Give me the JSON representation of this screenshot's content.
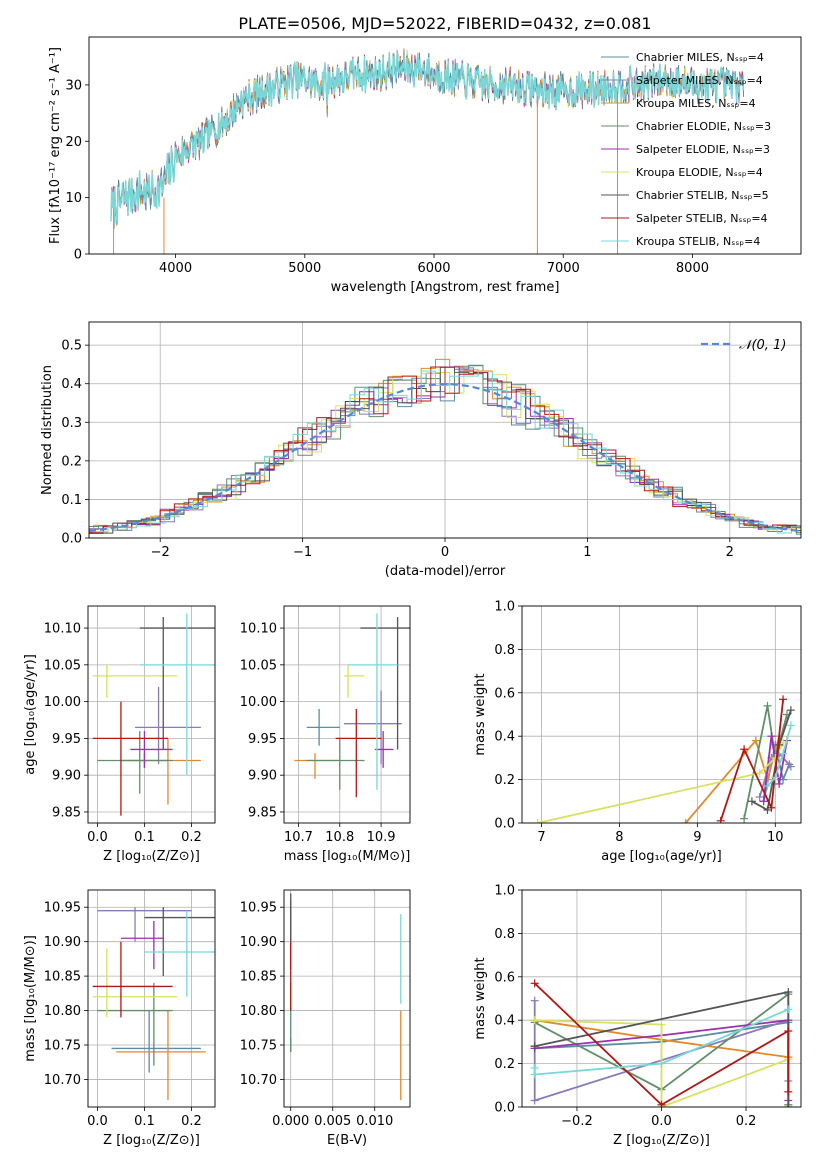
{
  "title": "PLATE=0506, MJD=52022, FIBERID=0432, z=0.081",
  "colors": {
    "models": [
      "#5a8ea0",
      "#8b7ab8",
      "#e08a2e",
      "#5f8f6a",
      "#9b30b0",
      "#d8e060",
      "#555555",
      "#b01818",
      "#79d7d7"
    ],
    "gauss": "#5588dd",
    "grid": "#b0b0b0"
  },
  "chart_data": [
    {
      "type": "line",
      "name": "spectrum",
      "xlabel": "wavelength [Angstrom, rest frame]",
      "ylabel": "Flux [fλ10⁻¹⁷ erg cm⁻² s⁻¹ A⁻¹]",
      "xlim": [
        3330,
        8840
      ],
      "ylim": [
        0,
        38.5
      ],
      "xticks": [
        4000,
        5000,
        6000,
        7000,
        8000
      ],
      "yticks": [
        0,
        10,
        20,
        30
      ],
      "grid": false,
      "legend_placement": "right",
      "legend": [
        "Chabrier MILES, Nₛₛₚ=4",
        "Salpeter MILES, Nₛₛₚ=4",
        "Kroupa MILES, Nₛₛₚ=4",
        "Chabrier ELODIE, Nₛₛₚ=3",
        "Salpeter ELODIE, Nₛₛₚ=3",
        "Kroupa ELODIE, Nₛₛₚ=4",
        "Chabrier STELIB, Nₛₛₚ=5",
        "Salpeter STELIB, Nₛₛₚ=4",
        "Kroupa STELIB, Nₛₛₚ=4"
      ],
      "continuum": {
        "x": [
          3500,
          3600,
          3700,
          3800,
          3900,
          4000,
          4100,
          4200,
          4300,
          4400,
          4500,
          4600,
          4700,
          4800,
          4900,
          5000,
          5100,
          5200,
          5300,
          5400,
          5500,
          5600,
          5700,
          5800,
          5900,
          6000,
          6200,
          6400,
          6600,
          6800,
          7000,
          7200,
          7400,
          7600,
          7800,
          8000,
          8200,
          8400
        ],
        "y": [
          8,
          10,
          11,
          11,
          12,
          17,
          19,
          20,
          22,
          24,
          27,
          28,
          29,
          30,
          31,
          31,
          30,
          31,
          31,
          32,
          32,
          32,
          33,
          33,
          33,
          32,
          31,
          30,
          30,
          29,
          29,
          29,
          30,
          30,
          31,
          30,
          30,
          30
        ]
      },
      "drops": [
        {
          "x": 3520,
          "y_from": 8,
          "y_to": 0
        },
        {
          "x": 3910,
          "y_from": 10,
          "y_to": 0
        },
        {
          "x": 6800,
          "y_from": 28,
          "y_to": 0
        },
        {
          "x": 7420,
          "y_from": 29,
          "y_to": 0
        }
      ]
    },
    {
      "type": "step",
      "name": "residuals",
      "xlabel": "(data-model)/error",
      "ylabel": "Normed distribution",
      "xlim": [
        -2.5,
        2.5
      ],
      "ylim": [
        0,
        0.56
      ],
      "xticks": [
        -2,
        -1,
        0,
        1,
        2
      ],
      "yticks": [
        0.0,
        0.1,
        0.2,
        0.3,
        0.4,
        0.5
      ],
      "grid": true,
      "legend_placement": "top-right",
      "legend": [
        "𝒩(0, 1)"
      ],
      "bin_width": 0.1
    },
    {
      "type": "errorbar",
      "name": "age-vs-Z",
      "xlabel": "Z [log₁₀(Z/Z⊙)]",
      "ylabel": "age  [log₁₀(age/yr)]",
      "xlim": [
        -0.02,
        0.25
      ],
      "ylim": [
        9.835,
        10.13
      ],
      "xticks": [
        0.0,
        0.1,
        0.2
      ],
      "yticks": [
        9.85,
        9.9,
        9.95,
        10.0,
        10.05,
        10.1
      ],
      "grid": true,
      "points": [
        {
          "c": 0,
          "x": 0.1,
          "xe": [
            0.05,
            0.15
          ],
          "y": 9.92,
          "ye": [
            9.91,
            9.93
          ]
        },
        {
          "c": 1,
          "x": 0.13,
          "xe": [
            0.08,
            0.22
          ],
          "y": 9.965,
          "ye": [
            9.915,
            10.02
          ]
        },
        {
          "c": 2,
          "x": 0.15,
          "xe": [
            0.05,
            0.22
          ],
          "y": 9.92,
          "ye": [
            9.86,
            9.95
          ]
        },
        {
          "c": 3,
          "x": 0.09,
          "xe": [
            0.0,
            0.16
          ],
          "y": 9.92,
          "ye": [
            9.875,
            9.96
          ]
        },
        {
          "c": 4,
          "x": 0.1,
          "xe": [
            0.07,
            0.16
          ],
          "y": 9.935,
          "ye": [
            9.91,
            9.96
          ]
        },
        {
          "c": 5,
          "x": 0.02,
          "xe": [
            -0.01,
            0.17
          ],
          "y": 10.035,
          "ye": [
            10.005,
            10.05
          ]
        },
        {
          "c": 6,
          "x": 0.14,
          "xe": [
            0.09,
            0.25
          ],
          "y": 10.1,
          "ye": [
            9.935,
            10.115
          ]
        },
        {
          "c": 7,
          "x": 0.05,
          "xe": [
            -0.01,
            0.15
          ],
          "y": 9.95,
          "ye": [
            9.845,
            10.0
          ]
        },
        {
          "c": 8,
          "x": 0.19,
          "xe": [
            0.09,
            0.25
          ],
          "y": 10.05,
          "ye": [
            9.9,
            10.12
          ]
        }
      ]
    },
    {
      "type": "errorbar",
      "name": "age-vs-mass",
      "xlabel": "mass [log₁₀(M/M⊙)]",
      "ylabel": "",
      "xlim": [
        10.665,
        10.97
      ],
      "ylim": [
        9.835,
        10.13
      ],
      "xticks": [
        10.7,
        10.8,
        10.9
      ],
      "yticks": [
        9.85,
        9.9,
        9.95,
        10.0,
        10.05,
        10.1
      ],
      "grid": true,
      "points": [
        {
          "c": 0,
          "x": 10.75,
          "xe": [
            10.72,
            10.8
          ],
          "y": 9.965,
          "ye": [
            9.94,
            9.99
          ]
        },
        {
          "c": 1,
          "x": 10.9,
          "xe": [
            10.81,
            10.95
          ],
          "y": 9.97,
          "ye": [
            9.915,
            10.015
          ]
        },
        {
          "c": 2,
          "x": 10.74,
          "xe": [
            10.69,
            10.8
          ],
          "y": 9.92,
          "ye": [
            9.895,
            9.93
          ]
        },
        {
          "c": 3,
          "x": 10.8,
          "xe": [
            10.72,
            10.86
          ],
          "y": 9.92,
          "ye": [
            9.88,
            9.95
          ]
        },
        {
          "c": 4,
          "x": 10.905,
          "xe": [
            10.885,
            10.93
          ],
          "y": 9.935,
          "ye": [
            9.91,
            9.96
          ]
        },
        {
          "c": 5,
          "x": 10.82,
          "xe": [
            10.81,
            10.86
          ],
          "y": 10.035,
          "ye": [
            10.005,
            10.05
          ]
        },
        {
          "c": 6,
          "x": 10.94,
          "xe": [
            10.85,
            10.97
          ],
          "y": 10.1,
          "ye": [
            9.935,
            10.115
          ]
        },
        {
          "c": 7,
          "x": 10.84,
          "xe": [
            10.79,
            10.9
          ],
          "y": 9.95,
          "ye": [
            9.87,
            9.99
          ]
        },
        {
          "c": 8,
          "x": 10.89,
          "xe": [
            10.82,
            10.94
          ],
          "y": 10.05,
          "ye": [
            9.88,
            10.12
          ]
        }
      ]
    },
    {
      "type": "line",
      "name": "mass-weight-vs-age",
      "xlabel": "age  [log₁₀(age/yr)]",
      "ylabel": "mass weight",
      "xlim": [
        6.75,
        10.33
      ],
      "ylim": [
        0,
        1.0
      ],
      "xticks": [
        7,
        8,
        9,
        10
      ],
      "yticks": [
        0.0,
        0.2,
        0.4,
        0.6,
        0.8,
        1.0
      ],
      "grid": true,
      "series": [
        {
          "c": 0,
          "x": [
            9.85,
            10.0,
            10.1,
            10.18
          ],
          "y": [
            0.1,
            0.36,
            0.2,
            0.27
          ]
        },
        {
          "c": 1,
          "x": [
            9.8,
            9.95,
            10.05,
            10.2
          ],
          "y": [
            0.12,
            0.3,
            0.32,
            0.26
          ]
        },
        {
          "c": 2,
          "x": [
            8.85,
            9.75,
            9.9,
            10.05
          ],
          "y": [
            0.0,
            0.38,
            0.2,
            0.4
          ]
        },
        {
          "c": 3,
          "x": [
            9.6,
            9.9,
            10.0,
            10.15
          ],
          "y": [
            0.02,
            0.54,
            0.3,
            0.5
          ]
        },
        {
          "c": 4,
          "x": [
            9.85,
            9.95,
            10.05,
            10.15
          ],
          "y": [
            0.1,
            0.4,
            0.18,
            0.38
          ]
        },
        {
          "c": 5,
          "x": [
            6.95,
            9.8,
            10.0,
            10.1
          ],
          "y": [
            0.0,
            0.23,
            0.3,
            0.37
          ]
        },
        {
          "c": 6,
          "x": [
            9.7,
            9.9,
            10.05,
            10.2
          ],
          "y": [
            0.1,
            0.06,
            0.36,
            0.52
          ]
        },
        {
          "c": 7,
          "x": [
            9.3,
            9.6,
            9.95,
            10.1
          ],
          "y": [
            0.01,
            0.34,
            0.07,
            0.57
          ]
        },
        {
          "c": 8,
          "x": [
            9.9,
            10.0,
            10.1,
            10.2
          ],
          "y": [
            0.17,
            0.21,
            0.32,
            0.45
          ]
        }
      ]
    },
    {
      "type": "errorbar",
      "name": "mass-vs-Z",
      "xlabel": "Z [log₁₀(Z/Z⊙)]",
      "ylabel": "mass [log₁₀(M/M⊙)]",
      "xlim": [
        -0.02,
        0.25
      ],
      "ylim": [
        10.66,
        10.975
      ],
      "xticks": [
        0.0,
        0.1,
        0.2
      ],
      "yticks": [
        10.7,
        10.75,
        10.8,
        10.85,
        10.9,
        10.95
      ],
      "grid": true,
      "points": [
        {
          "c": 0,
          "x": 0.11,
          "xe": [
            0.03,
            0.22
          ],
          "y": 10.745,
          "ye": [
            10.71,
            10.8
          ]
        },
        {
          "c": 1,
          "x": 0.08,
          "xe": [
            0.0,
            0.2
          ],
          "y": 10.945,
          "ye": [
            10.9,
            10.95
          ]
        },
        {
          "c": 2,
          "x": 0.15,
          "xe": [
            0.04,
            0.23
          ],
          "y": 10.74,
          "ye": [
            10.67,
            10.8
          ]
        },
        {
          "c": 3,
          "x": 0.12,
          "xe": [
            0.0,
            0.16
          ],
          "y": 10.8,
          "ye": [
            10.72,
            10.84
          ]
        },
        {
          "c": 4,
          "x": 0.12,
          "xe": [
            0.05,
            0.14
          ],
          "y": 10.905,
          "ye": [
            10.86,
            10.93
          ]
        },
        {
          "c": 5,
          "x": 0.02,
          "xe": [
            -0.01,
            0.17
          ],
          "y": 10.82,
          "ye": [
            10.79,
            10.89
          ]
        },
        {
          "c": 6,
          "x": 0.14,
          "xe": [
            0.1,
            0.25
          ],
          "y": 10.935,
          "ye": [
            10.85,
            10.95
          ]
        },
        {
          "c": 7,
          "x": 0.05,
          "xe": [
            -0.01,
            0.16
          ],
          "y": 10.835,
          "ye": [
            10.79,
            10.9
          ]
        },
        {
          "c": 8,
          "x": 0.19,
          "xe": [
            0.1,
            0.25
          ],
          "y": 10.885,
          "ye": [
            10.82,
            10.945
          ]
        }
      ]
    },
    {
      "type": "errorbar",
      "name": "mass-vs-EBV",
      "xlabel": "E(B-V)",
      "ylabel": "",
      "xlim": [
        -0.0008,
        0.0142
      ],
      "ylim": [
        10.66,
        10.975
      ],
      "xticks": [
        0.0,
        0.005,
        0.01
      ],
      "xticklabels": [
        "0.000",
        "0.005",
        "0.010"
      ],
      "yticks": [
        10.7,
        10.75,
        10.8,
        10.85,
        10.9,
        10.95
      ],
      "grid": true,
      "points": [
        {
          "c": 0,
          "x": 0.0,
          "xe": [
            0.0,
            0.0
          ],
          "y": 10.75,
          "ye": [
            10.74,
            10.76
          ]
        },
        {
          "c": 4,
          "x": 0.0,
          "xe": [
            0.0,
            0.0
          ],
          "y": 10.9,
          "ye": [
            10.86,
            10.96
          ]
        },
        {
          "c": 3,
          "x": 0.0,
          "xe": [
            0.0,
            0.0
          ],
          "y": 10.79,
          "ye": [
            10.74,
            10.84
          ]
        },
        {
          "c": 7,
          "x": 0.0,
          "xe": [
            0.0,
            0.0
          ],
          "y": 10.84,
          "ye": [
            10.8,
            10.9
          ]
        },
        {
          "c": 6,
          "x": 0.0,
          "xe": [
            0.0,
            0.0
          ],
          "y": 10.93,
          "ye": [
            10.9,
            10.97
          ]
        },
        {
          "c": 8,
          "x": 0.0131,
          "xe": [
            0.0131,
            0.0131
          ],
          "y": 10.88,
          "ye": [
            10.81,
            10.94
          ]
        },
        {
          "c": 2,
          "x": 0.0131,
          "xe": [
            0.0131,
            0.0131
          ],
          "y": 10.74,
          "ye": [
            10.67,
            10.8
          ]
        }
      ]
    },
    {
      "type": "line",
      "name": "mass-weight-vs-Z",
      "xlabel": "Z [log₁₀(Z/Z⊙)]",
      "ylabel": "mass weight",
      "xlim": [
        -0.33,
        0.33
      ],
      "ylim": [
        0,
        1.0
      ],
      "xticks": [
        -0.2,
        0.0,
        0.2
      ],
      "xticklabels": [
        "−0.2",
        "0.0",
        "0.2"
      ],
      "yticks": [
        0.0,
        0.2,
        0.4,
        0.6,
        0.8,
        1.0
      ],
      "grid": true,
      "series": [
        {
          "c": 0,
          "x": [
            -0.3,
            0.0,
            0.3,
            0.3
          ],
          "y": [
            0.27,
            0.3,
            0.39,
            0.23
          ]
        },
        {
          "c": 1,
          "x": [
            -0.3,
            -0.3,
            0.3,
            0.3
          ],
          "y": [
            0.49,
            0.03,
            0.4,
            0.12
          ]
        },
        {
          "c": 2,
          "x": [
            -0.3,
            0.0,
            0.3,
            0.3
          ],
          "y": [
            0.4,
            0.31,
            0.23,
            0.01
          ]
        },
        {
          "c": 3,
          "x": [
            -0.3,
            0.0,
            0.3,
            0.3
          ],
          "y": [
            0.39,
            0.08,
            0.52,
            0.01
          ]
        },
        {
          "c": 4,
          "x": [
            -0.3,
            0.0,
            0.3,
            0.3
          ],
          "y": [
            0.27,
            0.33,
            0.4,
            0.03
          ]
        },
        {
          "c": 5,
          "x": [
            -0.3,
            0.0,
            0.0,
            0.3
          ],
          "y": [
            0.4,
            0.38,
            0.0,
            0.22
          ]
        },
        {
          "c": 6,
          "x": [
            -0.3,
            -0.3,
            0.3,
            0.3
          ],
          "y": [
            0.28,
            0.28,
            0.53,
            0.0
          ]
        },
        {
          "c": 7,
          "x": [
            -0.3,
            0.0,
            0.3,
            0.3
          ],
          "y": [
            0.57,
            0.01,
            0.35,
            0.07
          ]
        },
        {
          "c": 8,
          "x": [
            -0.3,
            -0.3,
            0.0,
            0.3
          ],
          "y": [
            0.18,
            0.15,
            0.2,
            0.45
          ]
        }
      ]
    }
  ]
}
